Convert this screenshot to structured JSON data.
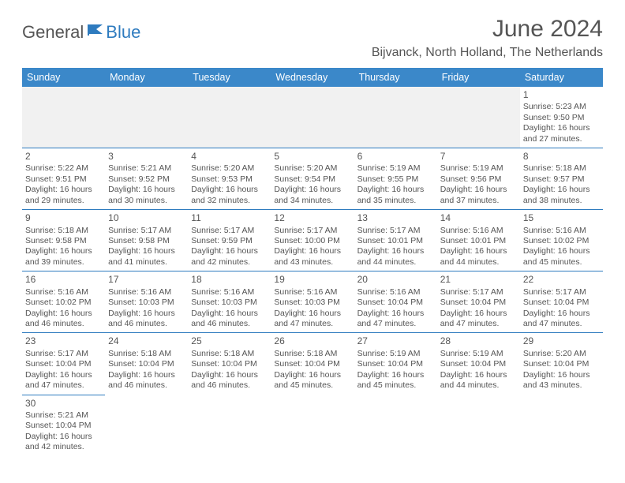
{
  "header": {
    "logo_part1": "General",
    "logo_part2": "Blue",
    "month_title": "June 2024",
    "location": "Bijvanck, North Holland, The Netherlands"
  },
  "colors": {
    "header_bg": "#3b88c9",
    "header_text": "#ffffff",
    "border": "#2e7bbf",
    "blank_bg": "#f1f1f1",
    "text": "#555555",
    "logo_accent": "#2e7bbf"
  },
  "day_headers": [
    "Sunday",
    "Monday",
    "Tuesday",
    "Wednesday",
    "Thursday",
    "Friday",
    "Saturday"
  ],
  "weeks": [
    [
      null,
      null,
      null,
      null,
      null,
      null,
      {
        "n": "1",
        "sr": "Sunrise: 5:23 AM",
        "ss": "Sunset: 9:50 PM",
        "d1": "Daylight: 16 hours",
        "d2": "and 27 minutes."
      }
    ],
    [
      {
        "n": "2",
        "sr": "Sunrise: 5:22 AM",
        "ss": "Sunset: 9:51 PM",
        "d1": "Daylight: 16 hours",
        "d2": "and 29 minutes."
      },
      {
        "n": "3",
        "sr": "Sunrise: 5:21 AM",
        "ss": "Sunset: 9:52 PM",
        "d1": "Daylight: 16 hours",
        "d2": "and 30 minutes."
      },
      {
        "n": "4",
        "sr": "Sunrise: 5:20 AM",
        "ss": "Sunset: 9:53 PM",
        "d1": "Daylight: 16 hours",
        "d2": "and 32 minutes."
      },
      {
        "n": "5",
        "sr": "Sunrise: 5:20 AM",
        "ss": "Sunset: 9:54 PM",
        "d1": "Daylight: 16 hours",
        "d2": "and 34 minutes."
      },
      {
        "n": "6",
        "sr": "Sunrise: 5:19 AM",
        "ss": "Sunset: 9:55 PM",
        "d1": "Daylight: 16 hours",
        "d2": "and 35 minutes."
      },
      {
        "n": "7",
        "sr": "Sunrise: 5:19 AM",
        "ss": "Sunset: 9:56 PM",
        "d1": "Daylight: 16 hours",
        "d2": "and 37 minutes."
      },
      {
        "n": "8",
        "sr": "Sunrise: 5:18 AM",
        "ss": "Sunset: 9:57 PM",
        "d1": "Daylight: 16 hours",
        "d2": "and 38 minutes."
      }
    ],
    [
      {
        "n": "9",
        "sr": "Sunrise: 5:18 AM",
        "ss": "Sunset: 9:58 PM",
        "d1": "Daylight: 16 hours",
        "d2": "and 39 minutes."
      },
      {
        "n": "10",
        "sr": "Sunrise: 5:17 AM",
        "ss": "Sunset: 9:58 PM",
        "d1": "Daylight: 16 hours",
        "d2": "and 41 minutes."
      },
      {
        "n": "11",
        "sr": "Sunrise: 5:17 AM",
        "ss": "Sunset: 9:59 PM",
        "d1": "Daylight: 16 hours",
        "d2": "and 42 minutes."
      },
      {
        "n": "12",
        "sr": "Sunrise: 5:17 AM",
        "ss": "Sunset: 10:00 PM",
        "d1": "Daylight: 16 hours",
        "d2": "and 43 minutes."
      },
      {
        "n": "13",
        "sr": "Sunrise: 5:17 AM",
        "ss": "Sunset: 10:01 PM",
        "d1": "Daylight: 16 hours",
        "d2": "and 44 minutes."
      },
      {
        "n": "14",
        "sr": "Sunrise: 5:16 AM",
        "ss": "Sunset: 10:01 PM",
        "d1": "Daylight: 16 hours",
        "d2": "and 44 minutes."
      },
      {
        "n": "15",
        "sr": "Sunrise: 5:16 AM",
        "ss": "Sunset: 10:02 PM",
        "d1": "Daylight: 16 hours",
        "d2": "and 45 minutes."
      }
    ],
    [
      {
        "n": "16",
        "sr": "Sunrise: 5:16 AM",
        "ss": "Sunset: 10:02 PM",
        "d1": "Daylight: 16 hours",
        "d2": "and 46 minutes."
      },
      {
        "n": "17",
        "sr": "Sunrise: 5:16 AM",
        "ss": "Sunset: 10:03 PM",
        "d1": "Daylight: 16 hours",
        "d2": "and 46 minutes."
      },
      {
        "n": "18",
        "sr": "Sunrise: 5:16 AM",
        "ss": "Sunset: 10:03 PM",
        "d1": "Daylight: 16 hours",
        "d2": "and 46 minutes."
      },
      {
        "n": "19",
        "sr": "Sunrise: 5:16 AM",
        "ss": "Sunset: 10:03 PM",
        "d1": "Daylight: 16 hours",
        "d2": "and 47 minutes."
      },
      {
        "n": "20",
        "sr": "Sunrise: 5:16 AM",
        "ss": "Sunset: 10:04 PM",
        "d1": "Daylight: 16 hours",
        "d2": "and 47 minutes."
      },
      {
        "n": "21",
        "sr": "Sunrise: 5:17 AM",
        "ss": "Sunset: 10:04 PM",
        "d1": "Daylight: 16 hours",
        "d2": "and 47 minutes."
      },
      {
        "n": "22",
        "sr": "Sunrise: 5:17 AM",
        "ss": "Sunset: 10:04 PM",
        "d1": "Daylight: 16 hours",
        "d2": "and 47 minutes."
      }
    ],
    [
      {
        "n": "23",
        "sr": "Sunrise: 5:17 AM",
        "ss": "Sunset: 10:04 PM",
        "d1": "Daylight: 16 hours",
        "d2": "and 47 minutes."
      },
      {
        "n": "24",
        "sr": "Sunrise: 5:18 AM",
        "ss": "Sunset: 10:04 PM",
        "d1": "Daylight: 16 hours",
        "d2": "and 46 minutes."
      },
      {
        "n": "25",
        "sr": "Sunrise: 5:18 AM",
        "ss": "Sunset: 10:04 PM",
        "d1": "Daylight: 16 hours",
        "d2": "and 46 minutes."
      },
      {
        "n": "26",
        "sr": "Sunrise: 5:18 AM",
        "ss": "Sunset: 10:04 PM",
        "d1": "Daylight: 16 hours",
        "d2": "and 45 minutes."
      },
      {
        "n": "27",
        "sr": "Sunrise: 5:19 AM",
        "ss": "Sunset: 10:04 PM",
        "d1": "Daylight: 16 hours",
        "d2": "and 45 minutes."
      },
      {
        "n": "28",
        "sr": "Sunrise: 5:19 AM",
        "ss": "Sunset: 10:04 PM",
        "d1": "Daylight: 16 hours",
        "d2": "and 44 minutes."
      },
      {
        "n": "29",
        "sr": "Sunrise: 5:20 AM",
        "ss": "Sunset: 10:04 PM",
        "d1": "Daylight: 16 hours",
        "d2": "and 43 minutes."
      }
    ],
    [
      {
        "n": "30",
        "sr": "Sunrise: 5:21 AM",
        "ss": "Sunset: 10:04 PM",
        "d1": "Daylight: 16 hours",
        "d2": "and 42 minutes."
      },
      null,
      null,
      null,
      null,
      null,
      null
    ]
  ]
}
